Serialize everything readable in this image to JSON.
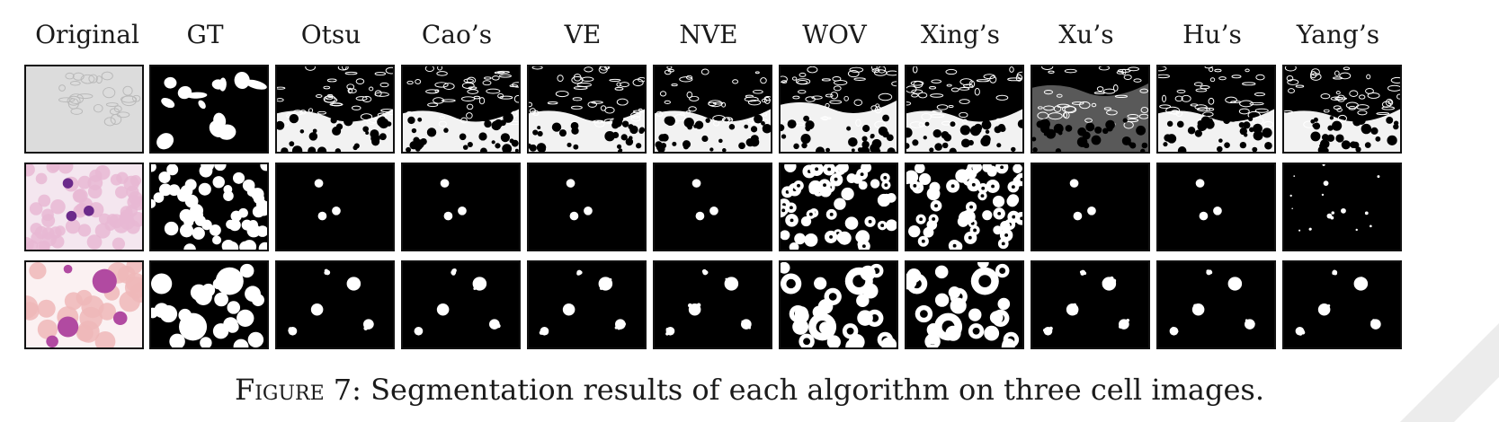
{
  "figure": {
    "columns": [
      {
        "label": "Original"
      },
      {
        "label": "GT"
      },
      {
        "label": "Otsu"
      },
      {
        "label": "Cao’s"
      },
      {
        "label": "VE"
      },
      {
        "label": "NVE"
      },
      {
        "label": "WOV"
      },
      {
        "label": "Xing’s"
      },
      {
        "label": "Xu’s"
      },
      {
        "label": "Hu’s"
      },
      {
        "label": "Yang’s"
      }
    ],
    "rows": 3,
    "caption": {
      "label": "Figure 7:",
      "text": "Segmentation results of each algorithm on three cell images."
    }
  },
  "colors": {
    "background": "#ffffff",
    "mask_foreground": "#ffffff",
    "mask_background": "#000000",
    "blood_cell_pink": "#e7b7d3",
    "nucleus_purple": "#6b2a8a",
    "corner_band": "#ececec"
  }
}
